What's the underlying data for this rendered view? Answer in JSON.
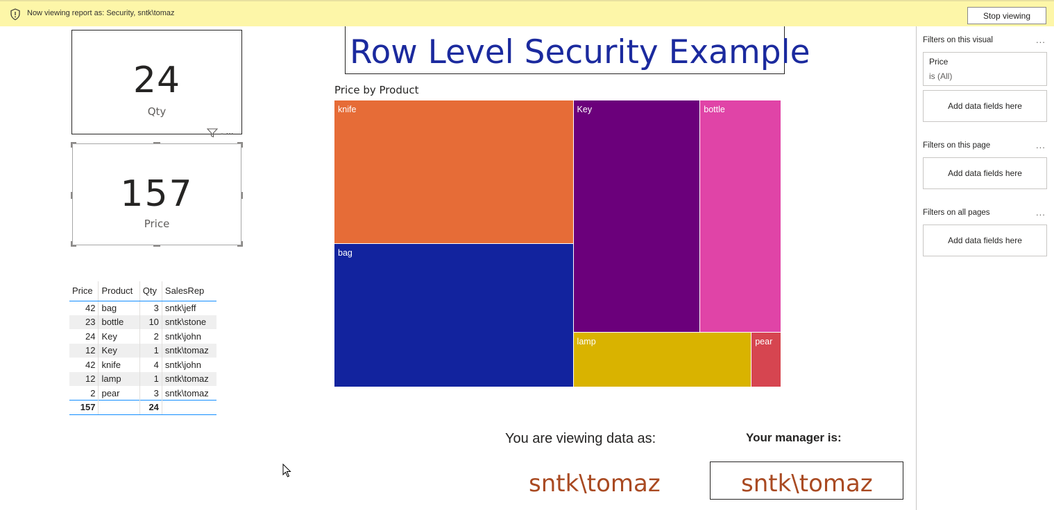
{
  "banner": {
    "message": "Now viewing report as: Security, sntk\\tomaz",
    "stop_label": "Stop viewing",
    "bg_color": "#fdf6a8"
  },
  "cards": [
    {
      "value": "24",
      "label": "Qty"
    },
    {
      "value": "157",
      "label": "Price"
    }
  ],
  "table": {
    "headers": [
      "Price",
      "Product",
      "Qty",
      "SalesRep"
    ],
    "rows": [
      [
        "42",
        "bag",
        "3",
        "sntk\\jeff"
      ],
      [
        "23",
        "bottle",
        "10",
        "sntk\\stone"
      ],
      [
        "24",
        "Key",
        "2",
        "sntk\\john"
      ],
      [
        "12",
        "Key",
        "1",
        "sntk\\tomaz"
      ],
      [
        "42",
        "knife",
        "4",
        "sntk\\john"
      ],
      [
        "12",
        "lamp",
        "1",
        "sntk\\tomaz"
      ],
      [
        "2",
        "pear",
        "3",
        "sntk\\tomaz"
      ]
    ],
    "totals": [
      "157",
      "",
      "24",
      ""
    ]
  },
  "report_title": "Row Level Security Example",
  "chart_data": {
    "type": "treemap",
    "title": "Price by Product",
    "categories": [
      "knife",
      "bag",
      "Key",
      "bottle",
      "lamp",
      "pear"
    ],
    "values": [
      42,
      42,
      36,
      23,
      12,
      2
    ],
    "colors": [
      "#e66c37",
      "#12239e",
      "#6b007b",
      "#e044a7",
      "#d9b300",
      "#d64550"
    ]
  },
  "viewing": {
    "label": "You are viewing data as:",
    "value": "sntk\\tomaz"
  },
  "manager": {
    "label": "Your manager is:",
    "value": "sntk\\tomaz"
  },
  "filters": {
    "visual_title": "Filters on this visual",
    "visual_filter_field": "Price",
    "visual_filter_value": "is (All)",
    "page_title": "Filters on this page",
    "all_title": "Filters on all pages",
    "add_label": "Add data fields here",
    "more": "..."
  },
  "accent_color": "#118dff",
  "value_color": "#a94a22"
}
